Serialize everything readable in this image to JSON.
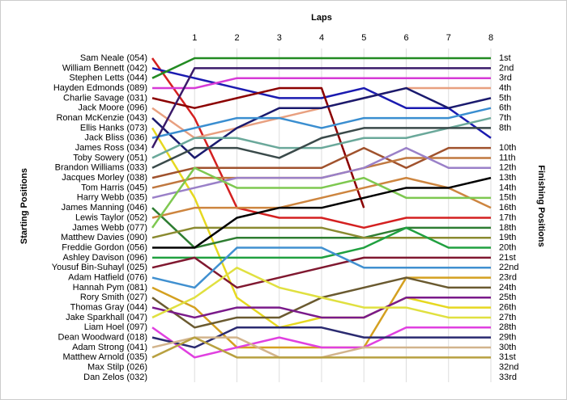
{
  "chart_data": {
    "type": "lap_chart",
    "title": "Laps",
    "y_label": "Starting Positions",
    "y2_label": "Finishing Positions",
    "x": [
      0,
      1,
      2,
      3,
      4,
      5,
      6,
      7,
      8
    ],
    "xlim": [
      0,
      8
    ],
    "xticks": [
      1,
      2,
      3,
      4,
      5,
      6,
      7,
      8
    ],
    "ylim": [
      1,
      33
    ],
    "grid": true,
    "finish_labels": [
      "1st",
      "2nd",
      "3rd",
      "4th",
      "5th",
      "6th",
      "7th",
      "8th",
      null,
      "10th",
      "11th",
      "12th",
      "13th",
      "14th",
      "15th",
      "16th",
      "17th",
      "18th",
      "19th",
      "20th",
      "21st",
      "22nd",
      "23rd",
      "24th",
      "25th",
      "26th",
      "27th",
      "28th",
      "29th",
      "30th",
      "31st",
      "32nd",
      "33rd"
    ],
    "series": [
      {
        "name": "Sam Neale (054)",
        "color": "#d42020",
        "values": [
          1,
          7,
          16,
          17,
          17,
          18,
          17,
          17,
          17
        ]
      },
      {
        "name": "William Bennett (042)",
        "color": "#1a1ab0",
        "values": [
          2,
          3,
          4,
          5,
          5,
          4,
          6,
          6,
          9
        ]
      },
      {
        "name": "Stephen Letts (044)",
        "color": "#228b22",
        "values": [
          3,
          1,
          1,
          1,
          1,
          1,
          1,
          1,
          1
        ]
      },
      {
        "name": "Hayden Edmonds (089)",
        "color": "#d63ad6",
        "values": [
          4,
          4,
          3,
          3,
          3,
          3,
          3,
          3,
          3
        ]
      },
      {
        "name": "Charlie Savage (031)",
        "color": "#8b0000",
        "values": [
          5,
          6,
          5,
          4,
          4,
          16,
          null,
          null,
          null
        ]
      },
      {
        "name": "Jack Moore (096)",
        "color": "#e8a080",
        "values": [
          6,
          9,
          8,
          7,
          6,
          5,
          4,
          4,
          4
        ]
      },
      {
        "name": "Ronan McKenzie (043)",
        "color": "#1a1a6e",
        "values": [
          7,
          11,
          8,
          6,
          6,
          5,
          4,
          6,
          5
        ]
      },
      {
        "name": "Ellis Hanks (073)",
        "color": "#e6d820",
        "values": [
          8,
          15,
          25,
          28,
          27,
          27,
          25,
          26,
          26
        ]
      },
      {
        "name": "Jack Bliss (036)",
        "color": "#3a8ed0",
        "values": [
          9,
          8,
          7,
          7,
          8,
          7,
          7,
          7,
          6
        ]
      },
      {
        "name": "James Ross (034)",
        "color": "#3a1a6a",
        "values": [
          10,
          2,
          2,
          2,
          2,
          2,
          2,
          2,
          2
        ]
      },
      {
        "name": "Toby Sowery (051)",
        "color": "#6aa89a",
        "values": [
          11,
          9,
          9,
          10,
          10,
          9,
          9,
          8,
          7
        ]
      },
      {
        "name": "Brandon Williams (033)",
        "color": "#3a4a4a",
        "values": [
          12,
          10,
          10,
          11,
          9,
          8,
          8,
          8,
          8
        ]
      },
      {
        "name": "Jacques Morley (038)",
        "color": "#a0522d",
        "values": [
          13,
          12,
          12,
          12,
          12,
          10,
          12,
          10,
          10
        ]
      },
      {
        "name": "Tom Harris (045)",
        "color": "#c07840",
        "values": [
          14,
          13,
          13,
          13,
          13,
          12,
          11,
          11,
          11
        ]
      },
      {
        "name": "Harry Webb (035)",
        "color": "#9a80c8",
        "values": [
          15,
          14,
          13,
          13,
          13,
          12,
          10,
          12,
          12
        ]
      },
      {
        "name": "James Manning (046)",
        "color": "#2e7d32",
        "values": [
          16,
          20,
          19,
          19,
          19,
          19,
          18,
          18,
          18
        ]
      },
      {
        "name": "Lewis Taylor (052)",
        "color": "#cd853f",
        "values": [
          17,
          16,
          16,
          16,
          15,
          14,
          13,
          14,
          16
        ]
      },
      {
        "name": "James Webb (077)",
        "color": "#7ec850",
        "values": [
          18,
          12,
          14,
          14,
          14,
          13,
          15,
          15,
          15
        ]
      },
      {
        "name": "Matthew Davies (090)",
        "color": "#8a8a30",
        "values": [
          19,
          18,
          18,
          18,
          18,
          19,
          19,
          19,
          19
        ]
      },
      {
        "name": "Freddie Gordon (056)",
        "color": "#000000",
        "values": [
          20,
          20,
          17,
          16,
          16,
          15,
          14,
          14,
          13
        ]
      },
      {
        "name": "Ashley Davison (096)",
        "color": "#20a040",
        "values": [
          21,
          21,
          21,
          21,
          21,
          20,
          18,
          20,
          20
        ]
      },
      {
        "name": "Yousuf Bin-Suhayl (025)",
        "color": "#801830",
        "values": [
          22,
          21,
          24,
          23,
          22,
          21,
          21,
          21,
          21
        ]
      },
      {
        "name": "Adam Hatfield (076)",
        "color": "#4090d0",
        "values": [
          23,
          24,
          20,
          20,
          20,
          22,
          22,
          22,
          22
        ]
      },
      {
        "name": "Hannah Pym (081)",
        "color": "#d4a020",
        "values": [
          24,
          26,
          30,
          30,
          30,
          30,
          23,
          23,
          23
        ]
      },
      {
        "name": "Rory Smith (027)",
        "color": "#6a5a30",
        "values": [
          25,
          28,
          27,
          27,
          25,
          24,
          23,
          24,
          24
        ]
      },
      {
        "name": "Thomas Gray (044)",
        "color": "#7a1a8a",
        "values": [
          26,
          27,
          26,
          26,
          27,
          27,
          25,
          25,
          25
        ]
      },
      {
        "name": "Jake Sparkhall (047)",
        "color": "#e0e040",
        "values": [
          27,
          25,
          22,
          24,
          25,
          26,
          26,
          27,
          27
        ]
      },
      {
        "name": "Liam Hoel (097)",
        "color": "#e040e0",
        "values": [
          28,
          31,
          30,
          29,
          30,
          30,
          28,
          28,
          28
        ]
      },
      {
        "name": "Dean Woodward (018)",
        "color": "#2a2a70",
        "values": [
          29,
          30,
          28,
          28,
          28,
          29,
          29,
          29,
          29
        ]
      },
      {
        "name": "Adam Strong (041)",
        "color": "#d2b48c",
        "values": [
          30,
          29,
          29,
          31,
          31,
          30,
          30,
          30,
          30
        ]
      },
      {
        "name": "Matthew Arnold (035)",
        "color": "#b8a040",
        "values": [
          31,
          29,
          31,
          31,
          31,
          31,
          31,
          31,
          31
        ]
      },
      {
        "name": "Max Stilp (026)",
        "values": [
          32,
          null,
          null,
          null,
          null,
          null,
          null,
          null,
          null
        ]
      },
      {
        "name": "Dan Zelos (032)",
        "values": [
          33,
          null,
          null,
          null,
          null,
          null,
          null,
          null,
          null
        ]
      }
    ]
  }
}
